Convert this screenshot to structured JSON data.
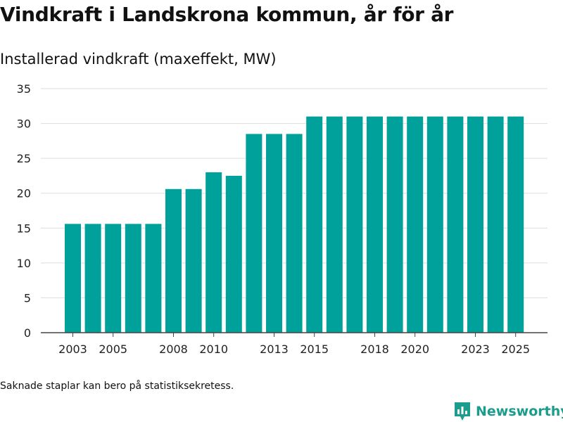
{
  "chart_data": {
    "type": "bar",
    "title": "Vindkraft i Landskrona kommun, år för år",
    "subtitle": "Installerad vindkraft (maxeffekt, MW)",
    "categories": [
      "2003",
      "2004",
      "2005",
      "2006",
      "2007",
      "2008",
      "2009",
      "2010",
      "2011",
      "2012",
      "2013",
      "2014",
      "2015",
      "2016",
      "2017",
      "2018",
      "2019",
      "2020",
      "2021",
      "2022",
      "2023",
      "2024",
      "2025"
    ],
    "x_tick_labels": [
      "2003",
      "2005",
      "2008",
      "2010",
      "2013",
      "2015",
      "2018",
      "2020",
      "2023",
      "2025"
    ],
    "values": [
      15.6,
      15.6,
      15.6,
      15.6,
      15.6,
      20.6,
      20.6,
      23.0,
      22.5,
      28.5,
      28.5,
      28.5,
      31.0,
      31.0,
      31.0,
      31.0,
      31.0,
      31.0,
      31.0,
      31.0,
      31.0,
      31.0,
      31.0
    ],
    "ylim": [
      0,
      35
    ],
    "y_ticks": [
      0,
      5,
      10,
      15,
      20,
      25,
      30,
      35
    ],
    "xlabel": "",
    "ylabel": "",
    "grid": true,
    "bar_color": "#00a19a",
    "footnote": "Saknade staplar kan bero på statistiksekretess."
  },
  "brand": {
    "name": "Newsworthy",
    "icon": "newsworthy-logo-icon",
    "color": "#1b9c8c"
  }
}
